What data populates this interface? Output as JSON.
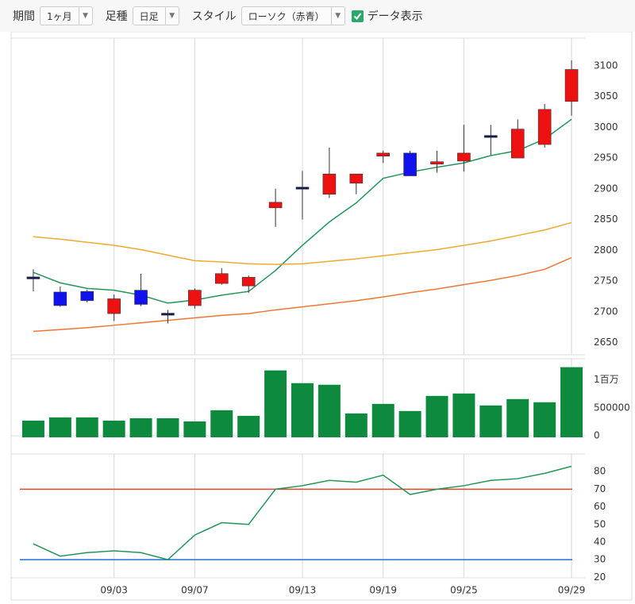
{
  "toolbar": {
    "period_label": "期間",
    "period_value": "1ヶ月",
    "bar_label": "足種",
    "bar_value": "日足",
    "style_label": "スタイル",
    "style_value": "ローソク（赤青）",
    "checkbox_label": "データ表示",
    "checkbox_checked": true
  },
  "chart_data": [
    {
      "type": "candlestick",
      "open": [
        2755,
        2732,
        2733,
        2697,
        2735,
        2696,
        2710,
        2746,
        2742,
        2869,
        2901,
        2891,
        2909,
        2953,
        2958,
        2940,
        2945,
        2985,
        2950,
        2972,
        3042
      ],
      "high": [
        2769,
        2741,
        2736,
        2728,
        2762,
        2703,
        2738,
        2771,
        2759,
        2900,
        2929,
        2967,
        2924,
        2962,
        2962,
        2962,
        3004,
        3004,
        3013,
        3038,
        3109
      ],
      "low": [
        2733,
        2708,
        2715,
        2685,
        2709,
        2681,
        2705,
        2744,
        2731,
        2838,
        2850,
        2885,
        2891,
        2942,
        2921,
        2926,
        2928,
        2955,
        2950,
        2967,
        3019
      ],
      "close": [
        2755,
        2710,
        2718,
        2721,
        2712,
        2696,
        2735,
        2762,
        2756,
        2878,
        2901,
        2924,
        2924,
        2958,
        2921,
        2944,
        2958,
        2985,
        2997,
        3029,
        3094
      ],
      "up_color": "#ee1111",
      "down_color": "#1111ee",
      "doji_color": "#0a1a5a",
      "series": [
        {
          "color": "#22965a",
          "values": [
            2764,
            2747,
            2738,
            2735,
            2727,
            2714,
            2719,
            2727,
            2733,
            2767,
            2808,
            2846,
            2877,
            2917,
            2927,
            2935,
            2942,
            2954,
            2962,
            2981,
            3013
          ]
        },
        {
          "color": "#f0aa30",
          "values": [
            2822,
            2818,
            2813,
            2808,
            2801,
            2792,
            2783,
            2781,
            2778,
            2777,
            2778,
            2782,
            2786,
            2791,
            2796,
            2801,
            2808,
            2815,
            2824,
            2833,
            2845
          ]
        },
        {
          "color": "#ee7733",
          "values": [
            2668,
            2671,
            2674,
            2678,
            2682,
            2686,
            2690,
            2694,
            2697,
            2703,
            2708,
            2713,
            2718,
            2724,
            2731,
            2737,
            2744,
            2751,
            2759,
            2769,
            2788
          ]
        }
      ],
      "ylim": [
        2630,
        3145
      ],
      "yticks": [
        2650,
        2700,
        2750,
        2800,
        2850,
        2900,
        2950,
        3000,
        3050,
        3100
      ],
      "grid": "x"
    },
    {
      "type": "bar",
      "color": "#0d8a3e",
      "values": [
        271000,
        329000,
        329000,
        271000,
        314000,
        314000,
        257000,
        457000,
        357000,
        1171000,
        943000,
        914000,
        400000,
        571000,
        443000,
        714000,
        757000,
        543000,
        657000,
        600000,
        1229000
      ],
      "ylim": [
        0,
        1380000
      ],
      "yticks": [
        0,
        500000,
        {
          "value": 1000000,
          "label": "1百万"
        }
      ],
      "grid": "x"
    },
    {
      "type": "line",
      "categories": [
        null,
        null,
        null,
        "09/03",
        null,
        null,
        "09/07",
        null,
        null,
        null,
        "09/13",
        null,
        null,
        "09/19",
        null,
        null,
        "09/25",
        null,
        null,
        null,
        "09/29"
      ],
      "series": [
        {
          "color": "#22965a",
          "values": [
            39,
            32,
            34,
            35,
            34,
            30,
            44,
            51,
            50,
            70,
            72,
            75,
            74,
            78,
            67,
            70,
            72,
            75,
            76,
            79,
            83
          ]
        }
      ],
      "reference_lines": [
        {
          "value": 70,
          "color": "#e0452a"
        },
        {
          "value": 30,
          "color": "#2a6fd0"
        }
      ],
      "ylim": [
        19.7,
        90
      ],
      "yticks": [
        20,
        30,
        40,
        50,
        60,
        70,
        80
      ],
      "grid": "x"
    }
  ]
}
